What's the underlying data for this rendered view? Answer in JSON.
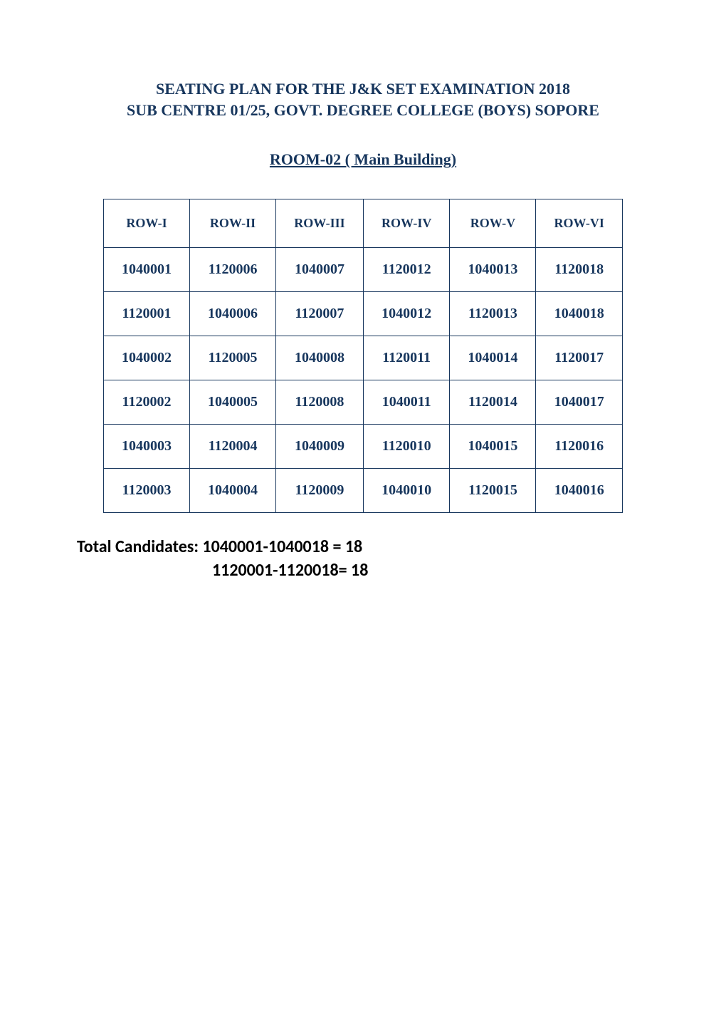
{
  "header": {
    "line1": "SEATING PLAN FOR THE J&K SET EXAMINATION 2018",
    "line2": "SUB CENTRE 01/25, GOVT. DEGREE COLLEGE (BOYS) SOPORE",
    "room": "ROOM-02 ( Main Building)"
  },
  "table": {
    "columns": [
      "ROW-I",
      "ROW-II",
      "ROW-III",
      "ROW-IV",
      "ROW-V",
      "ROW-VI"
    ],
    "rows": [
      [
        "1040001",
        "1120006",
        "1040007",
        "1120012",
        "1040013",
        "1120018"
      ],
      [
        "1120001",
        "1040006",
        "1120007",
        "1040012",
        "1120013",
        "1040018"
      ],
      [
        "1040002",
        "1120005",
        "1040008",
        "1120011",
        "1040014",
        "1120017"
      ],
      [
        "1120002",
        "1040005",
        "1120008",
        "1040011",
        "1120014",
        "1040017"
      ],
      [
        "1040003",
        "1120004",
        "1040009",
        "1120010",
        "1040015",
        "1120016"
      ],
      [
        "1120003",
        "1040004",
        "1120009",
        "1040010",
        "1120015",
        "1040016"
      ]
    ]
  },
  "totals": {
    "line1": "Total Candidates: 1040001-1040018 = 18",
    "line2": "1120001-1120018= 18"
  },
  "colors": {
    "heading": "#17365d",
    "border": "#17365d",
    "body_text": "#000000",
    "background": "#ffffff"
  }
}
